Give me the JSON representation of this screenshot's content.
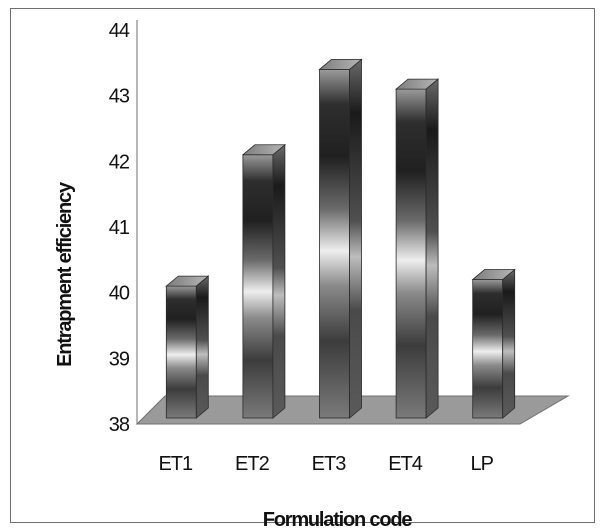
{
  "chart_data": {
    "type": "bar",
    "style": "3d-cylinder-columns",
    "title": "",
    "xlabel": "Formulation code",
    "ylabel": "Entrapment efficiency",
    "categories": [
      "ET1",
      "ET2",
      "ET3",
      "ET4",
      "LP"
    ],
    "values": [
      40.1,
      42.1,
      43.4,
      43.1,
      40.2
    ],
    "ylim": [
      38,
      44
    ],
    "yticks": [
      38,
      39,
      40,
      41,
      42,
      43,
      44
    ],
    "grid": false,
    "legend": "none",
    "colors": {
      "floor": "#9a9a9a",
      "bar_dark": "#3a3a3a",
      "bar_light": "#e8e8e8",
      "border": "#6e6e6e"
    }
  }
}
